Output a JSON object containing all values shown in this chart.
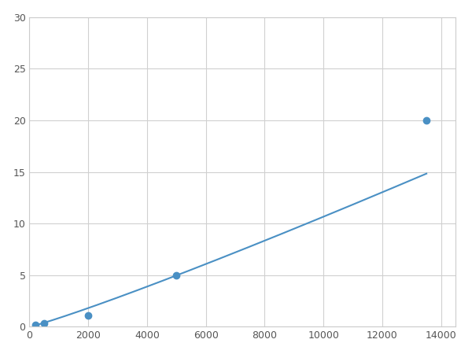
{
  "x": [
    200,
    500,
    2000,
    5000,
    13500
  ],
  "y": [
    0.2,
    0.35,
    1.1,
    5.0,
    20.0
  ],
  "line_color": "#4a90c4",
  "marker_color": "#4a90c4",
  "marker_size": 6,
  "line_width": 1.5,
  "xlim": [
    0,
    14500
  ],
  "ylim": [
    0,
    30
  ],
  "xticks": [
    0,
    2000,
    4000,
    6000,
    8000,
    10000,
    12000,
    14000
  ],
  "yticks": [
    0,
    5,
    10,
    15,
    20,
    25,
    30
  ],
  "grid": true,
  "background_color": "#ffffff",
  "spine_color": "#cccccc"
}
